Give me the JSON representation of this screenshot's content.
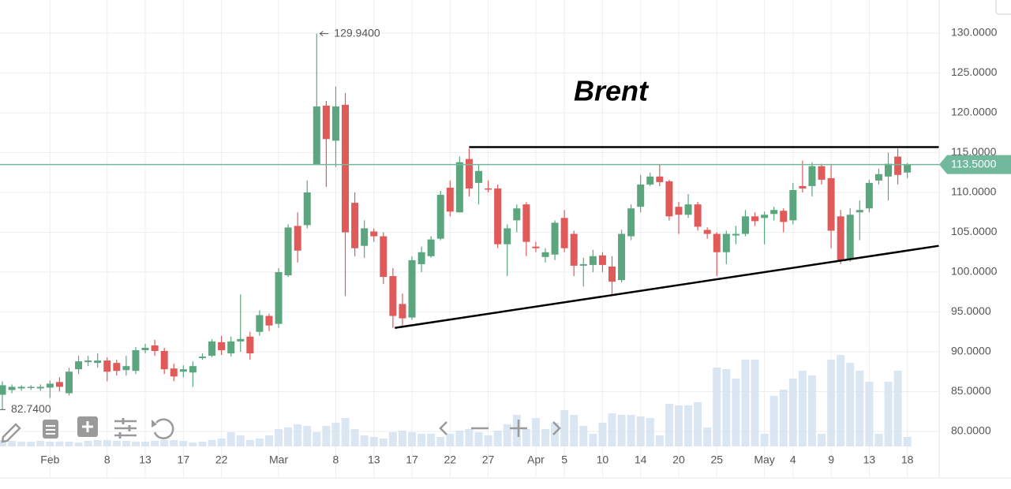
{
  "chart_data": {
    "type": "candlestick",
    "title": "Brent",
    "categories": [
      null,
      null,
      null,
      null,
      null,
      "Feb",
      null,
      null,
      null,
      null,
      null,
      "8",
      null,
      null,
      null,
      "13",
      null,
      null,
      null,
      "17",
      null,
      null,
      null,
      "22",
      null,
      null,
      null,
      null,
      null,
      "Mar",
      null,
      null,
      null,
      null,
      null,
      "8",
      null,
      null,
      null,
      "13",
      null,
      null,
      null,
      "17",
      null,
      null,
      null,
      "22",
      null,
      null,
      null,
      "27",
      null,
      null,
      null,
      null,
      "Apr",
      null,
      null,
      "5",
      null,
      null,
      null,
      "10",
      null,
      null,
      null,
      "14",
      null,
      null,
      null,
      "20",
      null,
      null,
      null,
      "25",
      null,
      null,
      null,
      null,
      "May",
      null,
      null,
      "4",
      null,
      null,
      null,
      "9",
      null,
      null,
      null,
      "13",
      null,
      null,
      null,
      "18"
    ],
    "open": [
      84.6,
      85.2,
      85.4,
      85.5,
      85.4,
      85.5,
      86.2,
      84.8,
      87.8,
      88.7,
      88.6,
      88.9,
      88.6,
      87.7,
      87.6,
      90.2,
      90.8,
      90.1,
      87.9,
      87.5,
      87.4,
      89.2,
      89.5,
      91.2,
      89.8,
      91.3,
      91.9,
      92.5,
      94.5,
      93.5,
      99.6,
      105.8,
      105.9,
      113.5,
      120.9,
      116.5,
      121,
      108.7,
      103.3,
      105.1,
      104.5,
      99.5,
      96,
      94.3,
      101,
      102,
      104.2,
      110.6,
      107.5,
      114.2,
      111.2,
      110.5,
      110.5,
      103.5,
      106.5,
      108.5,
      103.2,
      101.9,
      102.2,
      106.8,
      104.8,
      100.8,
      100.9,
      102.1,
      100.7,
      99,
      104.5,
      108.2,
      111,
      112,
      111.4,
      108.2,
      107.2,
      108.5,
      105.3,
      104.8,
      102.5,
      104.6,
      104.8,
      107,
      106.8,
      107.3,
      107.7,
      106.5,
      110.8,
      110.8,
      113.3,
      111.8,
      107,
      101.6,
      107.5,
      108,
      111.5,
      112,
      114.5,
      112.5
    ],
    "high": [
      86.3,
      85.9,
      85.8,
      85.8,
      85.9,
      86.4,
      86.8,
      88,
      89.5,
      89.5,
      89.8,
      89.3,
      89,
      89.5,
      90.6,
      91,
      91.5,
      90.5,
      88.5,
      88.3,
      88.8,
      89.8,
      91.6,
      92,
      91.9,
      97.2,
      92.5,
      95.2,
      94.8,
      100.5,
      106,
      107.5,
      111.5,
      129.94,
      121.5,
      123.3,
      122.5,
      110,
      106.5,
      105.5,
      105,
      100.5,
      97.3,
      102,
      103.2,
      104.5,
      110.2,
      111.5,
      114.5,
      115.5,
      113.5,
      111.5,
      111,
      106,
      108.5,
      108.8,
      103.8,
      103,
      106.5,
      107.8,
      105.2,
      101.8,
      102.8,
      102.5,
      102,
      105.3,
      108.5,
      112.2,
      112.5,
      113.5,
      111.6,
      108.8,
      109.8,
      108.8,
      105.6,
      105,
      105.2,
      105.8,
      107.8,
      107.5,
      107.6,
      108.2,
      108,
      111.2,
      114,
      113.8,
      113.6,
      113.5,
      107.8,
      108,
      109,
      111.6,
      113,
      115,
      115.5,
      113.7
    ],
    "low": [
      82.74,
      84.8,
      85.1,
      85.2,
      85.1,
      84.2,
      85,
      84.5,
      87.2,
      88.2,
      88,
      86.3,
      87,
      87,
      87.2,
      89.8,
      89.5,
      87.2,
      86.3,
      86.8,
      85.6,
      89,
      89.3,
      89.6,
      89.4,
      90,
      89,
      92,
      92.6,
      93,
      99.4,
      101.2,
      105.5,
      113.5,
      110.7,
      113.2,
      97,
      102,
      101.8,
      103.8,
      98.5,
      93,
      93.3,
      94,
      100,
      101.8,
      104,
      107,
      107.5,
      109.5,
      108.5,
      110,
      103,
      99.5,
      105,
      102,
      102.5,
      101.2,
      101.5,
      102.5,
      99.5,
      98.2,
      100,
      100,
      97.2,
      98.7,
      104,
      107.5,
      110.8,
      110.8,
      106.5,
      104.8,
      106.8,
      105.2,
      104.2,
      99.5,
      101,
      103.5,
      104.5,
      105.8,
      103.5,
      106.5,
      105,
      106,
      110,
      109.5,
      111,
      103,
      101,
      101.3,
      104,
      107.5,
      111,
      109,
      111,
      111.8
    ],
    "close": [
      85.8,
      85.6,
      85.6,
      85.6,
      85.6,
      86.0,
      85.6,
      87.5,
      88.8,
      88.9,
      88.9,
      87.5,
      87.6,
      88.2,
      90.2,
      90.5,
      90.1,
      87.8,
      86.9,
      87.8,
      88.2,
      89.4,
      91.3,
      90.2,
      91.3,
      91.6,
      89.8,
      94.6,
      93.3,
      100,
      105.6,
      102.7,
      110,
      120.8,
      116.7,
      120.8,
      105,
      103,
      105.5,
      104.5,
      99.4,
      94.5,
      94.2,
      101.5,
      102.5,
      104.1,
      109.7,
      107.6,
      113.8,
      110.5,
      112.7,
      110.4,
      103.5,
      105.5,
      108,
      103.8,
      103,
      102.5,
      106.2,
      103,
      100.8,
      101,
      102,
      100.9,
      98.8,
      104.8,
      108,
      111,
      112,
      111.3,
      107,
      107.2,
      108.5,
      105.7,
      104.8,
      102.5,
      104.8,
      104.8,
      107,
      106.4,
      107.2,
      107.8,
      106.3,
      110.3,
      110.5,
      113.3,
      111.6,
      105.2,
      101.5,
      107.2,
      107.8,
      111.2,
      112.3,
      113.6,
      112.2,
      113.5
    ],
    "volume": [
      8,
      7,
      6,
      6,
      7,
      6,
      6,
      6,
      5,
      7,
      8,
      8,
      7,
      7,
      6,
      6,
      7,
      8,
      8,
      7,
      5,
      6,
      8,
      10,
      18,
      14,
      8,
      10,
      14,
      22,
      24,
      28,
      26,
      18,
      26,
      30,
      36,
      22,
      14,
      12,
      10,
      18,
      20,
      18,
      16,
      16,
      12,
      16,
      20,
      22,
      18,
      14,
      20,
      28,
      40,
      22,
      36,
      22,
      30,
      46,
      40,
      26,
      16,
      30,
      42,
      40,
      40,
      38,
      36,
      14,
      54,
      52,
      52,
      56,
      24,
      100,
      98,
      86,
      110,
      110,
      16,
      64,
      72,
      86,
      96,
      90,
      16,
      110,
      116,
      106,
      96,
      82,
      16,
      82,
      96,
      12
    ],
    "up_color": "#5ba67f",
    "down_color": "#e05a5a",
    "volume_color": "#d3e2ef",
    "ylim": [
      78.12,
      134.16
    ],
    "yticks": [
      {
        "value": 80,
        "label": "80.0000"
      },
      {
        "value": 85,
        "label": "85.0000"
      },
      {
        "value": 90,
        "label": "90.0000"
      },
      {
        "value": 95,
        "label": "95.0000"
      },
      {
        "value": 100,
        "label": "100.0000"
      },
      {
        "value": 105,
        "label": "105.0000"
      },
      {
        "value": 110,
        "label": "110.0000"
      },
      {
        "value": 115,
        "label": "115.0000"
      },
      {
        "value": 120,
        "label": "120.0000"
      },
      {
        "value": 125,
        "label": "125.0000"
      },
      {
        "value": 130,
        "label": "130.0000"
      }
    ],
    "grid": true,
    "last_price": {
      "value": 113.5,
      "label": "113.5000",
      "color": "#72b89c"
    },
    "high_annotation": {
      "index": 33,
      "value": 129.94,
      "label": "129.9400"
    },
    "low_annotation": {
      "index": 0,
      "value": 82.74,
      "label": "82.7400"
    },
    "trendlines": [
      {
        "from": [
          49,
          115.7
        ],
        "to": [
          98.3,
          115.7
        ]
      },
      {
        "from": [
          41.2,
          93.0
        ],
        "to": [
          98.3,
          103.3
        ]
      }
    ]
  }
}
